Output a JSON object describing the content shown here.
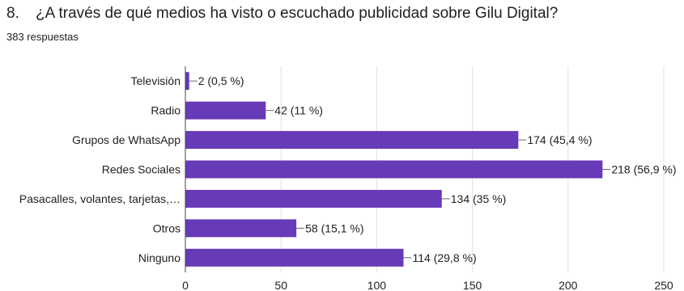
{
  "question": {
    "number": "8.",
    "text": "¿A través de qué medios ha visto o escuchado publicidad sobre Gilu Digital?",
    "responses": "383 respuestas"
  },
  "colors": {
    "bar": "#673ab7",
    "grid": "#e0e0e0",
    "axis": "#444444"
  },
  "chart_data": {
    "type": "bar",
    "orientation": "horizontal",
    "categories": [
      "Televisión",
      "Radio",
      "Grupos de WhatsApp",
      "Redes Sociales",
      "Pasacalles, volantes, tarjetas,…",
      "Otros",
      "Ninguno"
    ],
    "values": [
      2,
      42,
      174,
      218,
      134,
      58,
      114
    ],
    "data_labels": [
      "2 (0,5 %)",
      "42 (11 %)",
      "174 (45,4 %)",
      "218 (56,9 %)",
      "134 (35 %)",
      "58 (15,1 %)",
      "114 (29,8 %)"
    ],
    "xlim": [
      0,
      250
    ],
    "xticks": [
      0,
      50,
      100,
      150,
      200,
      250
    ],
    "grid": true,
    "title": "",
    "xlabel": "",
    "ylabel": ""
  }
}
